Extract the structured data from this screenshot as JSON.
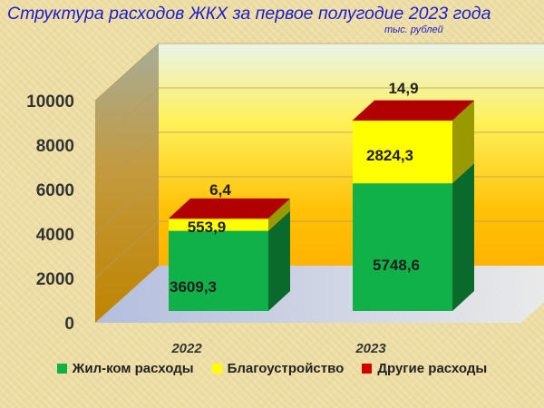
{
  "chart_data": {
    "type": "bar",
    "stacked": true,
    "title": "Структура расходов ЖКХ за первое полугодие 2023 года",
    "unit": "тыс. рублей",
    "categories": [
      "2022",
      "2023"
    ],
    "series": [
      {
        "name": "Жил-ком расходы",
        "values": [
          3609.3,
          5748.6
        ],
        "labels": [
          "3609,3",
          "5748,6"
        ],
        "color": "#10b149"
      },
      {
        "name": "Благоустройство",
        "values": [
          553.9,
          2824.3
        ],
        "labels": [
          "553,9",
          "2824,3"
        ],
        "color": "#ffff00"
      },
      {
        "name": "Другие расходы",
        "values": [
          6.4,
          14.9
        ],
        "labels": [
          "6,4",
          "14,9"
        ],
        "color": "#d00000"
      }
    ],
    "ylim": [
      0,
      10000
    ],
    "yticks": [
      "0",
      "2000",
      "4000",
      "6000",
      "8000",
      "10000"
    ],
    "grid": true,
    "legend_position": "bottom"
  }
}
